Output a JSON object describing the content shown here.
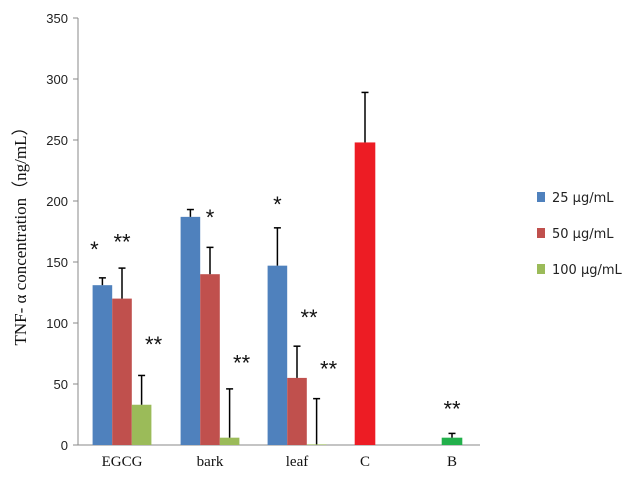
{
  "chart_data": {
    "type": "bar",
    "title": "",
    "xlabel": "",
    "ylabel": "TNF- α concentration（ng/mL）",
    "ylim": [
      0,
      350
    ],
    "yticks": [
      0,
      50,
      100,
      150,
      200,
      250,
      300,
      350
    ],
    "grid": false,
    "legend_position": "right",
    "categories": [
      "EGCG",
      "bark",
      "leaf",
      "C",
      "B"
    ],
    "series": [
      {
        "name": "25 μg/mL",
        "color": "#4f81bd",
        "values": [
          131,
          187,
          147,
          null,
          null
        ],
        "errors_upper": [
          137,
          193,
          178,
          null,
          null
        ]
      },
      {
        "name": "50 μg/mL",
        "color": "#c0504d",
        "values": [
          120,
          140,
          55,
          null,
          null
        ],
        "errors_upper": [
          145,
          162,
          81,
          null,
          null
        ]
      },
      {
        "name": "100 μg/mL",
        "color": "#9bbb59",
        "values": [
          33,
          6,
          0.5,
          null,
          null
        ],
        "errors_upper": [
          57,
          46,
          38,
          null,
          null
        ]
      }
    ],
    "controls": [
      {
        "category": "C",
        "value": 248,
        "error_upper": 289,
        "color": "#ed1c24"
      },
      {
        "category": "B",
        "value": 6,
        "error_upper": 9.5,
        "color": "#22b04b"
      }
    ],
    "annotations": [
      {
        "text": "*",
        "category": "EGCG",
        "series": 0,
        "y": 164
      },
      {
        "text": "**",
        "category": "EGCG",
        "series": 1,
        "y": 170
      },
      {
        "text": "**",
        "category": "EGCG",
        "series": 2,
        "y": 86
      },
      {
        "text": "*",
        "category": "bark",
        "series": 1,
        "y": 190
      },
      {
        "text": "**",
        "category": "bark",
        "series": 2,
        "y": 71
      },
      {
        "text": "*",
        "category": "leaf",
        "series": 0,
        "y": 201
      },
      {
        "text": "**",
        "category": "leaf",
        "series": 1,
        "y": 108
      },
      {
        "text": "**",
        "category": "leaf",
        "series": 2,
        "y": 66
      },
      {
        "text": "**",
        "category": "B",
        "series": null,
        "y": 33
      }
    ]
  }
}
